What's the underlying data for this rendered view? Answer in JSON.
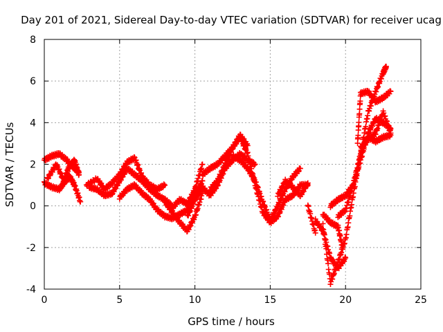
{
  "chart_data": {
    "type": "scatter",
    "title": "Day 201 of 2021, Sidereal Day-to-day VTEC variation (SDTVAR) for receiver ucag",
    "xlabel": "GPS time / hours",
    "ylabel": "SDTVAR / TECUs",
    "xlim": [
      0,
      25
    ],
    "ylim": [
      -4,
      8
    ],
    "xticks": [
      0,
      5,
      10,
      15,
      20,
      25
    ],
    "yticks": [
      -4,
      -2,
      0,
      2,
      4,
      6,
      8
    ],
    "grid": true,
    "marker": "+",
    "series": [
      {
        "name": "SDTVAR",
        "color": "#ff0000",
        "tracks": [
          {
            "x": [
              0.0,
              0.5,
              1.0,
              1.5,
              2.0,
              2.3
            ],
            "y": [
              2.2,
              2.4,
              2.5,
              2.2,
              1.8,
              1.6
            ]
          },
          {
            "x": [
              0.0,
              0.5,
              1.0,
              1.3,
              1.7,
              2.0,
              2.4
            ],
            "y": [
              1.1,
              0.9,
              0.8,
              1.1,
              1.4,
              1.0,
              0.2
            ]
          },
          {
            "x": [
              0.2,
              0.8,
              1.3,
              1.6,
              2.0,
              2.3
            ],
            "y": [
              1.3,
              2.0,
              1.2,
              1.8,
              2.2,
              1.5
            ]
          },
          {
            "x": [
              2.8,
              3.5,
              4.0,
              4.5,
              5.0,
              5.5,
              6.0,
              6.5,
              7.0,
              7.5,
              8.0
            ],
            "y": [
              1.0,
              1.3,
              0.8,
              1.1,
              1.5,
              2.1,
              2.3,
              1.4,
              1.0,
              0.8,
              1.0
            ]
          },
          {
            "x": [
              3.0,
              3.5,
              4.0,
              4.5,
              5.0,
              5.5,
              6.0,
              6.5,
              7.0,
              7.5,
              8.0,
              8.5
            ],
            "y": [
              0.9,
              0.8,
              0.5,
              0.6,
              1.2,
              1.8,
              1.5,
              1.2,
              0.8,
              0.5,
              0.3,
              0.0
            ]
          },
          {
            "x": [
              5.0,
              5.5,
              6.0,
              6.5,
              7.0,
              7.5,
              8.0,
              8.5,
              9.0,
              9.5,
              10.0,
              10.5
            ],
            "y": [
              0.4,
              0.8,
              1.0,
              0.6,
              0.3,
              -0.2,
              -0.5,
              -0.6,
              -0.4,
              -0.2,
              0.5,
              1.2
            ]
          },
          {
            "x": [
              8.0,
              8.5,
              9.0,
              9.5,
              10.0,
              10.5
            ],
            "y": [
              0.2,
              -0.3,
              -0.8,
              -1.2,
              -0.5,
              0.6
            ]
          },
          {
            "x": [
              8.5,
              9.0,
              9.5,
              10.0,
              10.5
            ],
            "y": [
              -0.1,
              0.3,
              0.1,
              0.8,
              2.0
            ]
          },
          {
            "x": [
              9.5,
              10.0,
              10.5,
              11.0,
              11.5,
              12.0,
              12.5,
              13.0,
              13.5,
              14.0
            ],
            "y": [
              -0.5,
              0.3,
              0.9,
              0.5,
              1.0,
              1.8,
              2.2,
              2.5,
              2.2,
              2.0
            ]
          },
          {
            "x": [
              10.5,
              11.0,
              11.5,
              12.0,
              12.5,
              13.0,
              13.5
            ],
            "y": [
              1.5,
              1.8,
              2.0,
              2.4,
              2.8,
              3.4,
              2.9
            ]
          },
          {
            "x": [
              11.0,
              11.5,
              12.0,
              12.5,
              13.0,
              13.5,
              14.0,
              14.5,
              15.0,
              15.5,
              16.0,
              16.5,
              17.0,
              17.5
            ],
            "y": [
              0.8,
              1.2,
              2.0,
              2.8,
              3.3,
              2.5,
              1.0,
              -0.3,
              -0.8,
              -0.5,
              0.3,
              0.5,
              1.0,
              1.0
            ]
          },
          {
            "x": [
              12.5,
              13.0,
              13.5,
              14.0,
              14.5,
              15.0,
              15.5,
              16.0,
              16.5,
              17.0
            ],
            "y": [
              2.4,
              2.2,
              1.8,
              1.2,
              0.2,
              -0.7,
              0.0,
              0.8,
              1.4,
              1.8
            ]
          },
          {
            "x": [
              15.5,
              16.0,
              16.5,
              17.0,
              17.5
            ],
            "y": [
              0.5,
              1.2,
              0.9,
              0.5,
              1.1
            ]
          },
          {
            "x": [
              17.5,
              18.0
            ],
            "y": [
              0.0,
              -1.3
            ]
          },
          {
            "x": [
              18.0,
              18.5,
              19.0,
              19.5,
              20.0
            ],
            "y": [
              -0.7,
              -1.2,
              -2.5,
              -3.0,
              -2.5
            ]
          },
          {
            "x": [
              18.5,
              19.0,
              19.5,
              20.0,
              20.5,
              21.0,
              21.5,
              22.0,
              22.5,
              23.0
            ],
            "y": [
              -0.9,
              -3.7,
              -2.7,
              -1.6,
              0.5,
              2.5,
              3.3,
              3.1,
              3.3,
              3.4
            ]
          },
          {
            "x": [
              18.5,
              19.0,
              19.5,
              19.8
            ],
            "y": [
              -0.4,
              -0.8,
              -1.0,
              -2.0
            ]
          },
          {
            "x": [
              19.0,
              19.5,
              20.0,
              20.5,
              21.0,
              21.5,
              22.0,
              22.5,
              23.0
            ],
            "y": [
              0.0,
              0.3,
              0.5,
              1.0,
              2.2,
              3.5,
              4.2,
              4.0,
              3.7
            ]
          },
          {
            "x": [
              19.5,
              20.0,
              20.5,
              21.0,
              21.5,
              22.0,
              22.5,
              22.7
            ],
            "y": [
              -0.5,
              -0.2,
              1.0,
              2.5,
              4.5,
              5.5,
              6.4,
              6.7
            ]
          },
          {
            "x": [
              20.8,
              21.0,
              21.5,
              22.0,
              22.5,
              23.0
            ],
            "y": [
              3.0,
              5.4,
              5.5,
              5.0,
              5.2,
              5.5
            ]
          },
          {
            "x": [
              21.0,
              21.5,
              22.0,
              22.5,
              23.0
            ],
            "y": [
              2.8,
              3.2,
              3.5,
              4.5,
              3.5
            ]
          }
        ]
      }
    ]
  }
}
